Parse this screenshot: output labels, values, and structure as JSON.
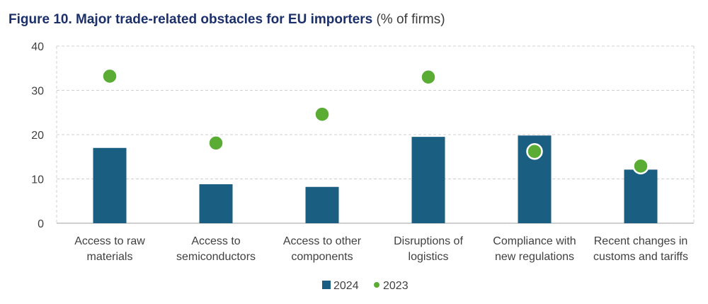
{
  "header": {
    "title_bold": "Figure 10. Major trade-related obstacles for EU importers",
    "title_suffix": "(% of firms)"
  },
  "chart_data": {
    "type": "bar",
    "categories": [
      [
        "Access to raw",
        "materials"
      ],
      [
        "Access to",
        "semiconductors"
      ],
      [
        "Access to other",
        "components"
      ],
      [
        "Disruptions of",
        "logistics"
      ],
      [
        "Compliance with",
        "new regulations"
      ],
      [
        "Recent changes in",
        "customs and tariffs"
      ]
    ],
    "series": [
      {
        "name": "2024",
        "kind": "bar",
        "color": "#1a5e82",
        "values": [
          17.0,
          8.8,
          8.2,
          19.5,
          19.8,
          12.1
        ]
      },
      {
        "name": "2023",
        "kind": "marker",
        "color": "#5aac35",
        "values": [
          33.2,
          18.1,
          24.6,
          33.0,
          16.2,
          12.9
        ]
      }
    ],
    "ylim": [
      0,
      40
    ],
    "yticks": [
      "0",
      "10",
      "20",
      "30",
      "40"
    ],
    "grid": true,
    "legend_position": "bottom-center"
  }
}
